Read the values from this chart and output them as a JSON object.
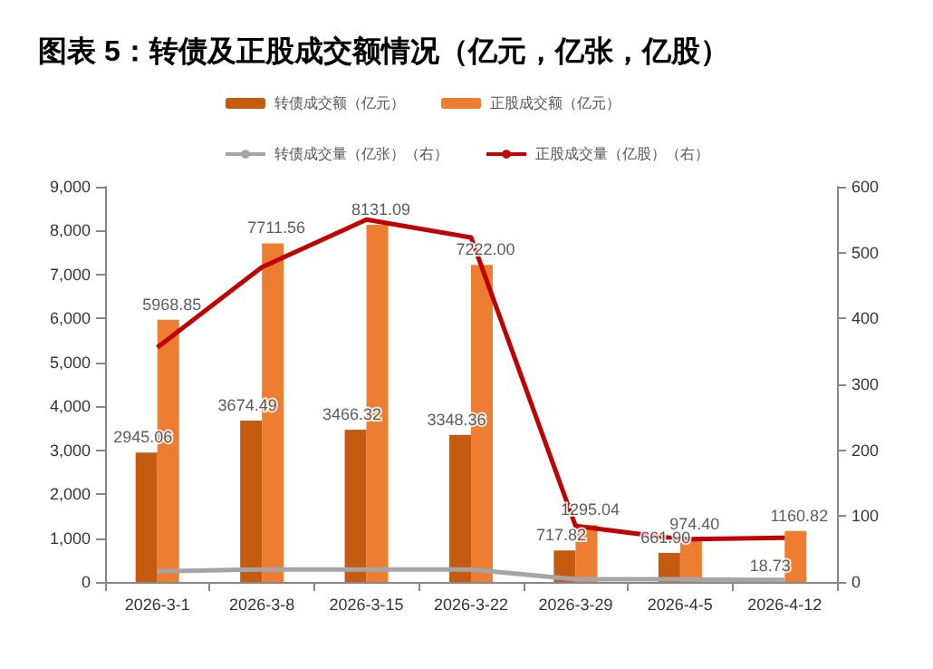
{
  "chart_data": {
    "type": "bar",
    "title": "图表 5：转债及正股成交额情况（亿元，亿张，亿股）",
    "categories": [
      "2026-3-1",
      "2026-3-8",
      "2026-3-15",
      "2026-3-22",
      "2026-3-29",
      "2026-4-5",
      "2026-4-12"
    ],
    "series": [
      {
        "name": "转债成交额（亿元）",
        "color": "#c55a11",
        "values": [
          2945.06,
          3674.49,
          3466.32,
          3348.36,
          717.82,
          661.9,
          18.73
        ],
        "value_labels": [
          "2945.06",
          "3674.49",
          "3466.32",
          "3348.36",
          "717.82",
          "661.90",
          "18.73"
        ]
      },
      {
        "name": "正股成交额（亿元）",
        "color": "#ed7d31",
        "values": [
          5968.85,
          7711.56,
          8131.09,
          7222.0,
          1295.04,
          974.4,
          1160.82
        ],
        "value_labels": [
          "5968.85",
          "7711.56",
          "8131.09",
          "7222.00",
          "1295.04",
          "974.40",
          "1160.82"
        ]
      },
      {
        "name": "转债成交量（亿张）（右）",
        "type": "line",
        "axis": "y2",
        "color": "#a5a5a5",
        "values": [
          16,
          19,
          19,
          19,
          4,
          4,
          3
        ]
      },
      {
        "name": "正股成交量（亿股）（右）",
        "type": "line",
        "axis": "y2",
        "color": "#c00000",
        "values": [
          356,
          478,
          550,
          523,
          85,
          65,
          67
        ]
      }
    ],
    "ylim": [
      0,
      9000
    ],
    "yticks": [
      0,
      {
        "value": 1000,
        "label": "1,000"
      },
      {
        "value": 2000,
        "label": "2,000"
      },
      {
        "value": 3000,
        "label": "3,000"
      },
      {
        "value": 4000,
        "label": "4,000"
      },
      {
        "value": 5000,
        "label": "5,000"
      },
      {
        "value": 6000,
        "label": "6,000"
      },
      {
        "value": 7000,
        "label": "7,000"
      },
      {
        "value": 8000,
        "label": "8,000"
      },
      {
        "value": 9000,
        "label": "9,000"
      }
    ],
    "y2lim": [
      0,
      600
    ],
    "y2ticks": [
      0,
      100,
      200,
      300,
      400,
      500,
      600
    ],
    "legend": "top",
    "grid": false,
    "marker": "none"
  }
}
